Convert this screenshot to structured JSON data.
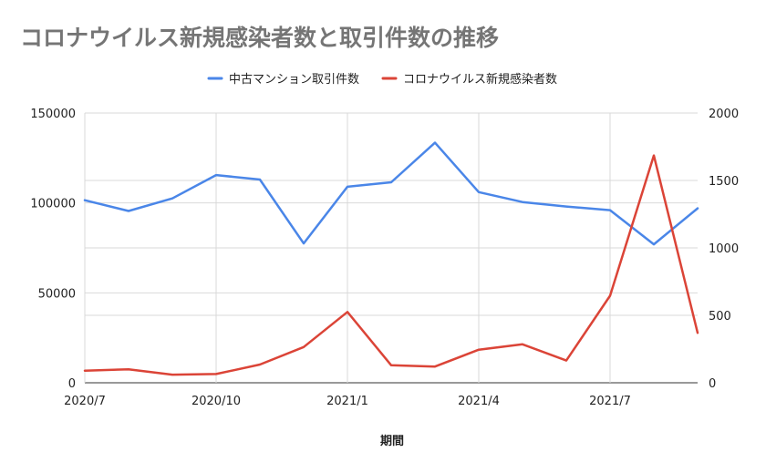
{
  "colors": {
    "series_1": "#4a86e8",
    "series_2": "#db4437",
    "grid": "#d9d9d9",
    "title": "#757575"
  },
  "chart_data": {
    "type": "line",
    "title": "コロナウイルス新規感染者数と取引件数の推移",
    "xlabel": "期間",
    "ylabel": "",
    "y2label": "",
    "x": [
      "2020/7",
      "2020/8",
      "2020/9",
      "2020/10",
      "2020/11",
      "2020/12",
      "2021/1",
      "2021/2",
      "2021/3",
      "2021/4",
      "2021/5",
      "2021/6",
      "2021/7",
      "2021/8",
      "2021/9"
    ],
    "x_tick_labels": [
      "2020/7",
      "2020/10",
      "2021/1",
      "2021/4",
      "2021/7"
    ],
    "ylim": [
      0,
      150000
    ],
    "y_ticks": [
      0,
      50000,
      100000,
      150000
    ],
    "y2lim": [
      0,
      2000
    ],
    "y2_ticks": [
      0,
      500,
      1000,
      1500,
      2000
    ],
    "legend_position": "top",
    "grid": true,
    "series": [
      {
        "name": "中古マンション取引件数",
        "axis": "left",
        "values": [
          101500,
          95500,
          102500,
          115500,
          113000,
          77500,
          109000,
          111500,
          133500,
          106000,
          100500,
          98000,
          96000,
          77000,
          97000
        ]
      },
      {
        "name": "コロナウイルス新規感染者数",
        "axis": "right",
        "values": [
          90,
          100,
          60,
          65,
          135,
          265,
          525,
          130,
          120,
          245,
          285,
          165,
          645,
          1685,
          370
        ]
      }
    ]
  }
}
